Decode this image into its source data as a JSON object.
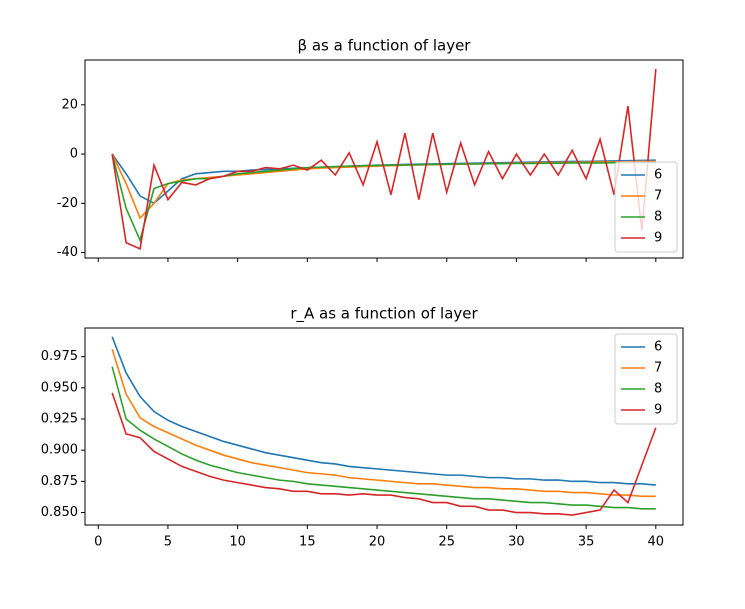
{
  "chart_data": [
    {
      "type": "line",
      "title": "β as a function of layer",
      "legend": "lower right",
      "x": [
        1,
        2,
        3,
        4,
        5,
        6,
        7,
        8,
        9,
        10,
        11,
        12,
        13,
        14,
        15,
        16,
        17,
        18,
        19,
        20,
        21,
        22,
        23,
        24,
        25,
        26,
        27,
        28,
        29,
        30,
        31,
        32,
        33,
        34,
        35,
        36,
        37,
        38,
        39,
        40
      ],
      "xlim": [
        -0.95,
        41.95
      ],
      "ylim": [
        -42.2,
        38.2
      ],
      "yticks": [
        20,
        0,
        -20,
        -40
      ],
      "series": [
        {
          "name": "6",
          "color": "#1f77b4",
          "values": [
            0,
            -8,
            -17,
            -20,
            -15,
            -10,
            -8,
            -7.5,
            -7,
            -7,
            -6.5,
            -6.3,
            -6,
            -5.8,
            -5.5,
            -5.3,
            -5.1,
            -4.9,
            -4.7,
            -4.5,
            -4.4,
            -4.2,
            -4.1,
            -4,
            -3.9,
            -3.8,
            -3.7,
            -3.6,
            -3.5,
            -3.4,
            -3.3,
            -3.2,
            -3.1,
            -3,
            -3,
            -2.9,
            -2.8,
            -2.7,
            -2.6,
            -2.5
          ]
        },
        {
          "name": "7",
          "color": "#ff7f0e",
          "values": [
            0,
            -12,
            -26,
            -20,
            -12,
            -10.5,
            -10,
            -9.5,
            -9,
            -8.5,
            -8,
            -7.5,
            -7,
            -6.5,
            -6,
            -5.7,
            -5.5,
            -5.3,
            -5.1,
            -4.9,
            -4.7,
            -4.5,
            -4.4,
            -4.3,
            -4.2,
            -4.1,
            -4,
            -3.9,
            -3.8,
            -3.7,
            -3.6,
            -3.5,
            -3.4,
            -3.4,
            -3.3,
            -3.2,
            -3.2,
            -3.1,
            -3,
            -3
          ]
        },
        {
          "name": "8",
          "color": "#2ca02c",
          "values": [
            0,
            -22,
            -35,
            -14,
            -12,
            -11,
            -10,
            -10,
            -9,
            -8,
            -7.5,
            -7,
            -6.5,
            -6,
            -5.5,
            -5.3,
            -5.1,
            -4.9,
            -4.7,
            -4.6,
            -4.5,
            -4.4,
            -4.3,
            -4.2,
            -4.1,
            -4,
            -4,
            -3.9,
            -3.9,
            -3.8,
            -3.8,
            -3.7,
            -3.7,
            -3.6,
            -3.6,
            -3.6,
            -3.5,
            -3.5,
            -3.5,
            -3.5
          ]
        },
        {
          "name": "9",
          "color": "#d62728",
          "values": [
            0,
            -36,
            -38.5,
            -4.5,
            -18.5,
            -11.5,
            -12.5,
            -10,
            -9,
            -7,
            -7,
            -5.5,
            -6,
            -4.5,
            -6.5,
            -2.5,
            -8.5,
            0.5,
            -12.5,
            5,
            -16.5,
            8.5,
            -18.5,
            8.5,
            -15.5,
            4.5,
            -12.5,
            1,
            -10,
            0,
            -8.5,
            0,
            -8.5,
            1.5,
            -10,
            6,
            -16.5,
            19.5,
            -31,
            34.5
          ]
        }
      ]
    },
    {
      "type": "line",
      "title": "r_A as a function of layer",
      "legend": "upper right",
      "x": [
        1,
        2,
        3,
        4,
        5,
        6,
        7,
        8,
        9,
        10,
        11,
        12,
        13,
        14,
        15,
        16,
        17,
        18,
        19,
        20,
        21,
        22,
        23,
        24,
        25,
        26,
        27,
        28,
        29,
        30,
        31,
        32,
        33,
        34,
        35,
        36,
        37,
        38,
        39,
        40
      ],
      "xlim": [
        -0.95,
        41.95
      ],
      "xticks": [
        0,
        5,
        10,
        15,
        20,
        25,
        30,
        35,
        40
      ],
      "ylim": [
        0.84,
        0.998
      ],
      "yticks": [
        {
          "value": 0.85,
          "label": "0.850"
        },
        0.875,
        {
          "value": 0.9,
          "label": "0.900"
        },
        0.925,
        {
          "value": 0.95,
          "label": "0.950"
        },
        0.975
      ],
      "series": [
        {
          "name": "6",
          "color": "#1f77b4",
          "values": [
            0.991,
            0.962,
            0.943,
            0.931,
            0.924,
            0.919,
            0.915,
            0.911,
            0.907,
            0.904,
            0.901,
            0.898,
            0.896,
            0.894,
            0.892,
            0.89,
            0.889,
            0.887,
            0.886,
            0.885,
            0.884,
            0.883,
            0.882,
            0.881,
            0.88,
            0.88,
            0.879,
            0.878,
            0.878,
            0.877,
            0.877,
            0.876,
            0.876,
            0.875,
            0.875,
            0.874,
            0.874,
            0.873,
            0.873,
            0.872
          ]
        },
        {
          "name": "7",
          "color": "#ff7f0e",
          "values": [
            0.981,
            0.945,
            0.926,
            0.919,
            0.914,
            0.909,
            0.904,
            0.9,
            0.896,
            0.893,
            0.89,
            0.888,
            0.886,
            0.884,
            0.882,
            0.881,
            0.88,
            0.878,
            0.877,
            0.876,
            0.875,
            0.874,
            0.873,
            0.873,
            0.872,
            0.871,
            0.87,
            0.87,
            0.869,
            0.869,
            0.868,
            0.867,
            0.867,
            0.866,
            0.866,
            0.865,
            0.864,
            0.864,
            0.863,
            0.863
          ]
        },
        {
          "name": "8",
          "color": "#2ca02c",
          "values": [
            0.967,
            0.925,
            0.916,
            0.909,
            0.903,
            0.897,
            0.892,
            0.888,
            0.885,
            0.882,
            0.88,
            0.878,
            0.876,
            0.875,
            0.873,
            0.872,
            0.871,
            0.87,
            0.869,
            0.868,
            0.867,
            0.866,
            0.865,
            0.864,
            0.863,
            0.862,
            0.861,
            0.861,
            0.86,
            0.859,
            0.858,
            0.858,
            0.857,
            0.856,
            0.856,
            0.855,
            0.854,
            0.854,
            0.853,
            0.853
          ]
        },
        {
          "name": "9",
          "color": "#d62728",
          "values": [
            0.946,
            0.913,
            0.91,
            0.899,
            0.893,
            0.887,
            0.883,
            0.879,
            0.876,
            0.874,
            0.872,
            0.87,
            0.869,
            0.867,
            0.867,
            0.865,
            0.865,
            0.864,
            0.865,
            0.864,
            0.864,
            0.862,
            0.861,
            0.858,
            0.858,
            0.855,
            0.855,
            0.852,
            0.852,
            0.85,
            0.85,
            0.849,
            0.849,
            0.848,
            0.85,
            0.852,
            0.868,
            0.858,
            0.888,
            0.918
          ]
        }
      ]
    }
  ]
}
